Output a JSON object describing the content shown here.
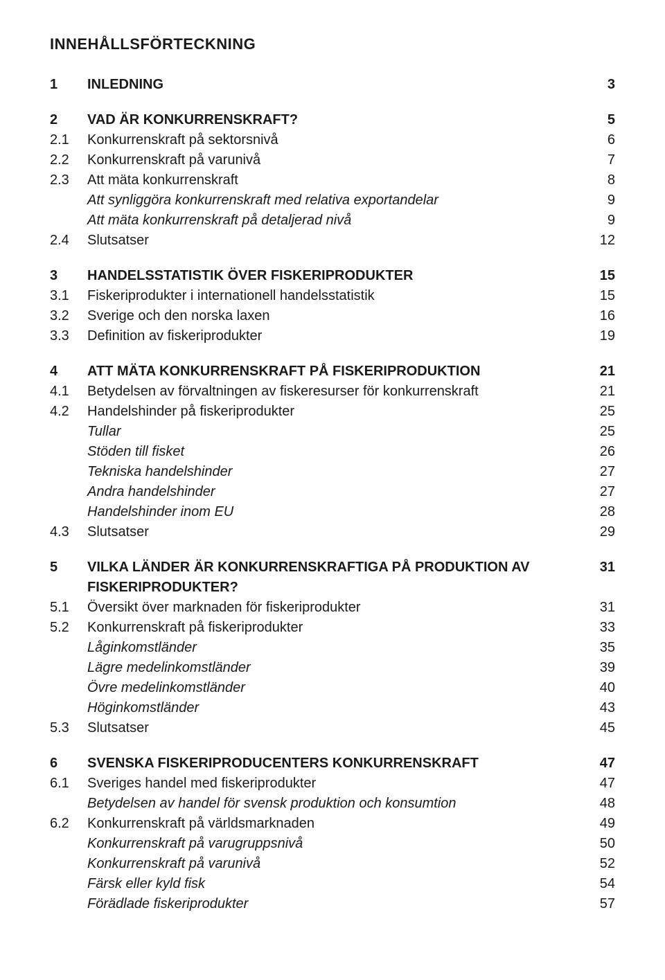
{
  "title": "INNEHÅLLSFÖRTECKNING",
  "sections": [
    {
      "num": "1",
      "label": "INLEDNING",
      "page": "3",
      "bold": true,
      "gap": true
    },
    {
      "num": "2",
      "label": "VAD ÄR KONKURRENSKRAFT?",
      "page": "5",
      "bold": true,
      "gap": true
    },
    {
      "num": "2.1",
      "label": "Konkurrenskraft på sektorsnivå",
      "page": "6"
    },
    {
      "num": "2.2",
      "label": "Konkurrenskraft på varunivå",
      "page": "7"
    },
    {
      "num": "2.3",
      "label": "Att mäta konkurrenskraft",
      "page": "8"
    },
    {
      "num": "",
      "label": "Att synliggöra konkurrenskraft med relativa exportandelar",
      "page": "9",
      "italic": true
    },
    {
      "num": "",
      "label": "Att mäta konkurrenskraft på detaljerad nivå",
      "page": "9",
      "italic": true
    },
    {
      "num": "2.4",
      "label": "Slutsatser",
      "page": "12"
    },
    {
      "num": "3",
      "label": "HANDELSSTATISTIK ÖVER FISKERIPRODUKTER",
      "page": "15",
      "bold": true,
      "gap": true
    },
    {
      "num": "3.1",
      "label": "Fiskeriprodukter i internationell handelsstatistik",
      "page": "15"
    },
    {
      "num": "3.2",
      "label": "Sverige och den norska laxen",
      "page": "16"
    },
    {
      "num": "3.3",
      "label": "Definition av fiskeriprodukter",
      "page": "19"
    },
    {
      "num": "4",
      "label": "ATT MÄTA KONKURRENSKRAFT PÅ FISKERIPRODUKTION",
      "page": "21",
      "bold": true,
      "gap": true
    },
    {
      "num": "4.1",
      "label": "Betydelsen av förvaltningen av fiskeresurser för konkurrenskraft",
      "page": "21"
    },
    {
      "num": "4.2",
      "label": "Handelshinder på fiskeriprodukter",
      "page": "25"
    },
    {
      "num": "",
      "label": "Tullar",
      "page": "25",
      "italic": true
    },
    {
      "num": "",
      "label": "Stöden till fisket",
      "page": "26",
      "italic": true
    },
    {
      "num": "",
      "label": "Tekniska handelshinder",
      "page": "27",
      "italic": true
    },
    {
      "num": "",
      "label": "Andra handelshinder",
      "page": "27",
      "italic": true
    },
    {
      "num": "",
      "label": "Handelshinder inom EU",
      "page": "28",
      "italic": true
    },
    {
      "num": "4.3",
      "label": "Slutsatser",
      "page": "29"
    },
    {
      "num": "5",
      "label": "VILKA LÄNDER ÄR KONKURRENSKRAFTIGA PÅ PRODUKTION AV FISKERIPRODUKTER?",
      "page": "31",
      "bold": true,
      "gap": true
    },
    {
      "num": "5.1",
      "label": "Översikt över marknaden för fiskeriprodukter",
      "page": "31"
    },
    {
      "num": "5.2",
      "label": "Konkurrenskraft på fiskeriprodukter",
      "page": "33"
    },
    {
      "num": "",
      "label": "Låginkomstländer",
      "page": "35",
      "italic": true
    },
    {
      "num": "",
      "label": "Lägre medelinkomstländer",
      "page": "39",
      "italic": true
    },
    {
      "num": "",
      "label": "Övre medelinkomstländer",
      "page": "40",
      "italic": true
    },
    {
      "num": "",
      "label": "Höginkomstländer",
      "page": "43",
      "italic": true
    },
    {
      "num": "5.3",
      "label": "Slutsatser",
      "page": "45"
    },
    {
      "num": "6",
      "label": "SVENSKA FISKERIPRODUCENTERS KONKURRENSKRAFT",
      "page": "47",
      "bold": true,
      "gap": true
    },
    {
      "num": "6.1",
      "label": "Sveriges handel med fiskeriprodukter",
      "page": "47"
    },
    {
      "num": "",
      "label": "Betydelsen av handel för svensk produktion och konsumtion",
      "page": "48",
      "italic": true
    },
    {
      "num": "6.2",
      "label": "Konkurrenskraft på världsmarknaden",
      "page": "49"
    },
    {
      "num": "",
      "label": "Konkurrenskraft på varugruppsnivå",
      "page": "50",
      "italic": true
    },
    {
      "num": "",
      "label": "Konkurrenskraft på varunivå",
      "page": "52",
      "italic": true
    },
    {
      "num": "",
      "label": "Färsk eller kyld fisk",
      "page": "54",
      "italic": true
    },
    {
      "num": "",
      "label": "Förädlade fiskeriprodukter",
      "page": "57",
      "italic": true
    }
  ]
}
